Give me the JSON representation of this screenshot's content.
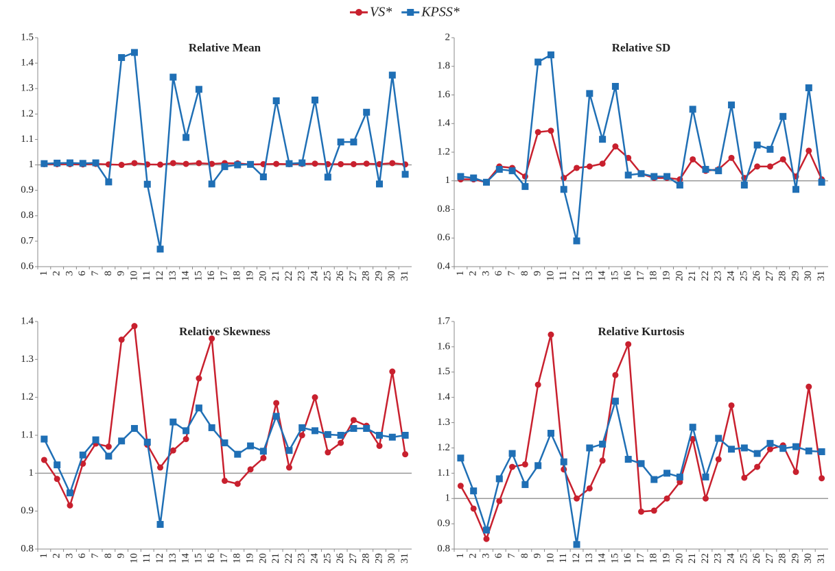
{
  "legend": [
    {
      "name": "VS*",
      "color": "#c8202e"
    },
    {
      "name": "KPSS*",
      "color": "#1f6fb5"
    }
  ],
  "chart_data": [
    {
      "type": "line",
      "title": "Relative Mean",
      "categories": [
        "1",
        "2",
        "3",
        "6",
        "7",
        "8",
        "9",
        "10",
        "11",
        "12",
        "13",
        "14",
        "15",
        "16",
        "17",
        "18",
        "19",
        "20",
        "21",
        "22",
        "23",
        "24",
        "25",
        "26",
        "27",
        "28",
        "29",
        "30",
        "31"
      ],
      "ylim": [
        0.6,
        1.5
      ],
      "yticks": [
        0.6,
        0.7,
        0.8,
        0.9,
        1,
        1.1,
        1.2,
        1.3,
        1.4,
        1.5
      ],
      "reference_line": 1,
      "series": [
        {
          "values": [
            1.003,
            1.003,
            1.003,
            1.002,
            1.004,
            1.002,
            1.0,
            1.007,
            1.002,
            1.001,
            1.007,
            1.004,
            1.007,
            1.004,
            1.007,
            1.006,
            1.002,
            1.003,
            1.004,
            1.003,
            1.004,
            1.005,
            1.003,
            1.003,
            1.003,
            1.005,
            1.003,
            1.007,
            1.002
          ]
        },
        {
          "values": [
            1.005,
            1.007,
            1.008,
            1.006,
            1.008,
            0.933,
            1.422,
            1.442,
            0.924,
            0.669,
            1.345,
            1.108,
            1.297,
            0.925,
            0.993,
            1.0,
            1.002,
            0.953,
            1.252,
            1.005,
            1.008,
            1.255,
            0.952,
            1.09,
            1.09,
            1.207,
            0.925,
            1.353,
            0.963
          ]
        }
      ]
    },
    {
      "type": "line",
      "title": "Relative SD",
      "categories": [
        "1",
        "2",
        "3",
        "6",
        "7",
        "8",
        "9",
        "10",
        "11",
        "12",
        "13",
        "14",
        "15",
        "16",
        "17",
        "18",
        "19",
        "20",
        "21",
        "22",
        "23",
        "24",
        "25",
        "26",
        "27",
        "28",
        "29",
        "30",
        "31"
      ],
      "ylim": [
        0.4,
        2
      ],
      "yticks": [
        0.4,
        0.6,
        0.8,
        1,
        1.2,
        1.4,
        1.6,
        1.8,
        2
      ],
      "reference_line": 1,
      "series": [
        {
          "values": [
            1.01,
            1.01,
            0.99,
            1.1,
            1.09,
            1.03,
            1.34,
            1.35,
            1.02,
            1.09,
            1.1,
            1.12,
            1.24,
            1.16,
            1.05,
            1.02,
            1.02,
            1.01,
            1.15,
            1.07,
            1.08,
            1.16,
            1.02,
            1.1,
            1.1,
            1.15,
            1.03,
            1.21,
            1.01
          ]
        },
        {
          "values": [
            1.03,
            1.02,
            0.99,
            1.08,
            1.07,
            0.96,
            1.83,
            1.88,
            0.94,
            0.58,
            1.61,
            1.29,
            1.66,
            1.04,
            1.05,
            1.03,
            1.03,
            0.97,
            1.5,
            1.08,
            1.07,
            1.53,
            0.97,
            1.25,
            1.22,
            1.45,
            0.94,
            1.65,
            0.99
          ]
        }
      ]
    },
    {
      "type": "line",
      "title": "Relative Skewness",
      "categories": [
        "1",
        "2",
        "3",
        "6",
        "7",
        "8",
        "9",
        "10",
        "11",
        "12",
        "13",
        "14",
        "15",
        "16",
        "17",
        "18",
        "19",
        "20",
        "21",
        "22",
        "23",
        "24",
        "25",
        "26",
        "27",
        "28",
        "29",
        "30",
        "31"
      ],
      "ylim": [
        0.8,
        1.4
      ],
      "yticks": [
        0.8,
        0.9,
        1,
        1.1,
        1.2,
        1.3,
        1.4
      ],
      "reference_line": 1,
      "series": [
        {
          "values": [
            1.035,
            0.985,
            0.915,
            1.025,
            1.078,
            1.07,
            1.352,
            1.388,
            1.075,
            1.015,
            1.06,
            1.09,
            1.25,
            1.355,
            0.98,
            0.972,
            1.01,
            1.04,
            1.185,
            1.015,
            1.1,
            1.2,
            1.055,
            1.08,
            1.14,
            1.125,
            1.072,
            1.268,
            1.05
          ]
        },
        {
          "values": [
            1.09,
            1.022,
            0.948,
            1.048,
            1.088,
            1.045,
            1.085,
            1.118,
            1.082,
            0.865,
            1.135,
            1.112,
            1.172,
            1.12,
            1.08,
            1.05,
            1.072,
            1.058,
            1.15,
            1.06,
            1.12,
            1.112,
            1.102,
            1.1,
            1.118,
            1.118,
            1.1,
            1.095,
            1.1
          ]
        }
      ]
    },
    {
      "type": "line",
      "title": "Relative Kurtosis",
      "categories": [
        "1",
        "2",
        "3",
        "6",
        "7",
        "8",
        "9",
        "10",
        "11",
        "12",
        "13",
        "14",
        "15",
        "16",
        "17",
        "18",
        "19",
        "20",
        "21",
        "22",
        "23",
        "24",
        "25",
        "26",
        "27",
        "28",
        "29",
        "30",
        "31"
      ],
      "ylim": [
        0.8,
        1.7
      ],
      "yticks": [
        0.8,
        0.9,
        1,
        1.1,
        1.2,
        1.3,
        1.4,
        1.5,
        1.6,
        1.7
      ],
      "reference_line": 1,
      "series": [
        {
          "values": [
            1.05,
            0.96,
            0.84,
            0.99,
            1.125,
            1.135,
            1.45,
            1.648,
            1.115,
            1.0,
            1.04,
            1.15,
            1.488,
            1.61,
            0.948,
            0.952,
            1.0,
            1.065,
            1.235,
            1.0,
            1.155,
            1.368,
            1.082,
            1.125,
            1.195,
            1.21,
            1.105,
            1.442,
            1.08
          ]
        },
        {
          "values": [
            1.16,
            1.03,
            0.875,
            1.078,
            1.178,
            1.055,
            1.13,
            1.258,
            1.145,
            0.818,
            1.2,
            1.215,
            1.385,
            1.155,
            1.138,
            1.075,
            1.1,
            1.085,
            1.282,
            1.085,
            1.238,
            1.195,
            1.2,
            1.178,
            1.218,
            1.198,
            1.205,
            1.188,
            1.185
          ]
        }
      ]
    }
  ]
}
